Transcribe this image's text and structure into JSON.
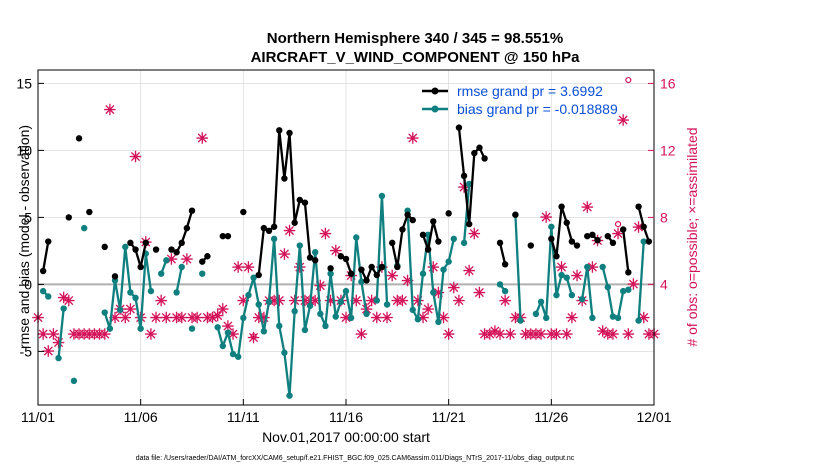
{
  "figure": {
    "title_line1": "Northern Hemisphere 340 / 345 = 98.551%",
    "title_line2": "AIRCRAFT_V_WIND_COMPONENT @ 150 hPa",
    "footer": "data file: /Users/raeder/DAI/ATM_forcXX/CAM6_setup/f.e21.FHIST_BGC.f09_025.CAM6assim.011/Diags_NTrS_2017-11/obs_diag_output.nc"
  },
  "colors": {
    "rmse": "#000000",
    "bias": "#0f7f7f",
    "obs": "#d4145a",
    "legend_text": "#0a4fd6",
    "zero_line": "#b0b0b0",
    "grid": "#dcdcdc"
  },
  "chart_data": {
    "type": "line",
    "title": "Northern Hemisphere 340 / 345 = 98.551%",
    "subtitle": "AIRCRAFT_V_WIND_COMPONENT @ 150 hPa",
    "xlabel": "Nov.01,2017 00:00:00 start",
    "ylabel": "rmse and bias (model - observation)",
    "y2label": "# of obs: o=possible; ×=assimilated",
    "xlim": [
      0,
      30
    ],
    "ylim": [
      -9,
      16
    ],
    "y2lim": [
      -3.2,
      16.8
    ],
    "x_ticks": [
      0,
      5,
      10,
      15,
      20,
      25,
      30
    ],
    "x_tick_labels": [
      "11/01",
      "11/06",
      "11/11",
      "11/16",
      "11/21",
      "11/26",
      "12/01"
    ],
    "y_ticks": [
      -5,
      0,
      5,
      10,
      15
    ],
    "y_tick_labels": [
      "-5",
      "0",
      "5",
      "10",
      "15"
    ],
    "y2_ticks": [
      4,
      8,
      12,
      16
    ],
    "y2_tick_labels": [
      "4",
      "8",
      "12",
      "16"
    ],
    "grid": true,
    "legend_position": "top-right",
    "series": [
      {
        "name": "rmse",
        "legend": "rmse grand pr = 3.6992",
        "points": [
          [
            0.25,
            1
          ],
          [
            0.5,
            3.2
          ],
          null,
          [
            1.5,
            5
          ],
          null,
          [
            2,
            10.9
          ],
          null,
          [
            2.5,
            5.4
          ],
          null,
          [
            3.25,
            2.8
          ],
          null,
          [
            3.75,
            0.6
          ],
          null,
          [
            4.5,
            3.1
          ],
          [
            4.75,
            2.6
          ],
          [
            5,
            1.3
          ],
          [
            5.25,
            3.1
          ],
          null,
          [
            5.75,
            2.6
          ],
          null,
          [
            6.5,
            2.6
          ],
          [
            6.75,
            2.4
          ],
          [
            7,
            3.1
          ],
          [
            7.25,
            4.2
          ],
          [
            7.5,
            5.5
          ],
          null,
          [
            8,
            1.7
          ],
          [
            8.25,
            2.1
          ],
          null,
          [
            9,
            3.6
          ],
          [
            9.25,
            3.6
          ],
          null,
          [
            10,
            5.4
          ],
          null,
          [
            10.75,
            0.7
          ],
          [
            11,
            4.2
          ],
          [
            11.25,
            4
          ],
          [
            11.5,
            4.3
          ],
          [
            11.75,
            11.5
          ],
          [
            12,
            7.9
          ],
          [
            12.25,
            11.3
          ],
          [
            12.5,
            4.6
          ],
          [
            12.75,
            6.3
          ],
          [
            13,
            6.1
          ],
          [
            13.25,
            2
          ],
          [
            13.5,
            1.8
          ],
          null,
          [
            14.25,
            1.2
          ],
          null,
          [
            14.75,
            2.1
          ],
          [
            15,
            1.9
          ],
          [
            15.25,
            0.8
          ],
          null,
          [
            15.75,
            1.1
          ],
          [
            16,
            0.3
          ],
          [
            16.25,
            1.3
          ],
          [
            16.5,
            0.7
          ],
          [
            16.75,
            1.3
          ],
          null,
          [
            17.25,
            3.1
          ],
          [
            17.5,
            1.3
          ],
          [
            17.75,
            4.1
          ],
          [
            18,
            5.2
          ],
          [
            18.25,
            4.8
          ],
          null,
          [
            18.75,
            3.7
          ],
          [
            19,
            2.6
          ],
          [
            19.25,
            4.7
          ],
          [
            19.5,
            3.2
          ],
          null,
          [
            20,
            5.3
          ],
          null,
          [
            20.5,
            11.7
          ],
          [
            20.75,
            8.1
          ],
          [
            21,
            4.5
          ],
          [
            21.25,
            9.8
          ],
          [
            21.5,
            10.2
          ],
          [
            21.75,
            9.4
          ],
          null,
          [
            22.5,
            3.1
          ],
          [
            22.75,
            1.5
          ],
          null,
          [
            23.25,
            5.2
          ],
          null,
          [
            24,
            2.9
          ],
          null,
          [
            25,
            3.4
          ],
          [
            25.25,
            2.1
          ],
          [
            25.5,
            5.8
          ],
          [
            25.75,
            4.6
          ],
          [
            26,
            3.2
          ],
          [
            26.25,
            2.9
          ],
          null,
          [
            26.75,
            3.6
          ],
          [
            27,
            3.7
          ],
          [
            27.25,
            3.3
          ],
          null,
          [
            27.75,
            3.6
          ],
          [
            28,
            3.1
          ],
          null,
          [
            28.5,
            4.1
          ],
          [
            28.75,
            0.9
          ],
          null,
          [
            29.25,
            5.8
          ],
          [
            29.5,
            4.3
          ],
          [
            29.75,
            3.2
          ]
        ]
      },
      {
        "name": "bias",
        "legend": "bias grand pr = -0.018889",
        "points": [
          [
            0.25,
            -0.5
          ],
          [
            0.5,
            -0.9
          ],
          null,
          [
            1,
            -5.5
          ],
          [
            1.25,
            -1.8
          ],
          null,
          [
            1.75,
            -7.2
          ],
          null,
          [
            2.25,
            4.2
          ],
          null,
          [
            3.25,
            -2.1
          ],
          [
            3.5,
            -3.3
          ],
          [
            3.75,
            0.3
          ],
          [
            4,
            -1.9
          ],
          [
            4.25,
            2.8
          ],
          [
            4.5,
            -0.6
          ],
          [
            4.75,
            -1
          ],
          [
            5,
            -3.3
          ],
          [
            5.25,
            2.3
          ],
          [
            5.5,
            -0.5
          ],
          null,
          [
            6,
            0.8
          ],
          [
            6.25,
            1.8
          ],
          null,
          [
            6.75,
            -0.6
          ],
          [
            7,
            1.3
          ],
          null,
          [
            7.5,
            -3.3
          ],
          null,
          [
            8,
            0.8
          ],
          null,
          [
            8.75,
            -3.2
          ],
          [
            9,
            -4.6
          ],
          [
            9.25,
            -3.6
          ],
          [
            9.5,
            -5.2
          ],
          [
            9.75,
            -5.4
          ],
          [
            10,
            -2.5
          ],
          [
            10.25,
            -0.8
          ],
          [
            10.5,
            0.5
          ],
          [
            10.75,
            -1.5
          ],
          [
            11,
            -3.5
          ],
          [
            11.25,
            -1.3
          ],
          [
            11.5,
            3.4
          ],
          [
            11.75,
            -3.1
          ],
          [
            12,
            -5.1
          ],
          [
            12.25,
            -8.3
          ],
          [
            12.5,
            -2
          ],
          [
            12.75,
            2.9
          ],
          [
            13,
            -3.4
          ],
          [
            13.25,
            -1.6
          ],
          [
            13.5,
            2.4
          ],
          [
            13.75,
            -2.2
          ],
          [
            14,
            -3.1
          ],
          [
            14.25,
            0.8
          ],
          [
            14.5,
            -2.4
          ],
          [
            14.75,
            -1.3
          ],
          [
            15,
            -0.5
          ],
          [
            15.25,
            -2.5
          ],
          [
            15.5,
            3.5
          ],
          [
            15.75,
            0.2
          ],
          [
            16,
            -2.2
          ],
          null,
          [
            16.5,
            -1.2
          ],
          [
            16.75,
            6.6
          ],
          [
            17,
            -1.5
          ],
          null,
          [
            17.5,
            1.4
          ],
          null,
          [
            18,
            5.5
          ],
          [
            18.25,
            -1.9
          ],
          [
            18.5,
            -2.6
          ],
          [
            18.75,
            0.8
          ],
          [
            19,
            3.7
          ],
          [
            19.25,
            -0.6
          ],
          [
            19.5,
            -2.8
          ],
          [
            19.75,
            1.1
          ],
          [
            20,
            1.7
          ],
          [
            20.25,
            3.4
          ],
          null,
          [
            20.75,
            3.1
          ],
          [
            21,
            7.5
          ],
          null,
          [
            22.5,
            0
          ],
          [
            22.75,
            -0.5
          ],
          null,
          [
            23.25,
            5.2
          ],
          [
            23.5,
            -2.7
          ],
          null,
          [
            24.25,
            -2.2
          ],
          [
            24.5,
            -1.3
          ],
          [
            24.75,
            -2.5
          ],
          [
            25,
            4.3
          ],
          [
            25.25,
            -0.8
          ],
          [
            25.5,
            0.7
          ],
          [
            25.75,
            0.5
          ],
          [
            26,
            -0.8
          ],
          null,
          [
            26.5,
            -1.1
          ],
          [
            26.75,
            1.3
          ],
          [
            27,
            -2.5
          ],
          null,
          [
            27.5,
            1.3
          ],
          [
            27.75,
            -0.2
          ],
          [
            28,
            -2.4
          ],
          [
            28.25,
            -2.5
          ],
          [
            28.5,
            -0.5
          ],
          [
            28.75,
            -0.4
          ],
          null,
          [
            29.25,
            -2.7
          ],
          [
            29.5,
            3.2
          ]
        ]
      },
      {
        "name": "observations",
        "axis": "right",
        "marker": "asterisk",
        "values": [
          [
            0,
            2
          ],
          [
            0.25,
            1
          ],
          [
            0.5,
            0
          ],
          [
            0.75,
            1
          ],
          [
            1,
            0.5
          ],
          [
            1.25,
            3.2
          ],
          [
            1.5,
            3
          ],
          [
            1.75,
            1
          ],
          [
            2,
            1
          ],
          [
            2.25,
            1
          ],
          [
            2.5,
            1
          ],
          [
            2.75,
            1
          ],
          [
            3,
            1
          ],
          [
            3.25,
            1
          ],
          [
            3.5,
            14.4
          ],
          [
            3.75,
            2
          ],
          [
            4,
            2.5
          ],
          [
            4.25,
            2
          ],
          [
            4.5,
            2.5
          ],
          [
            4.75,
            11.6
          ],
          [
            5,
            2
          ],
          [
            5.25,
            6.5
          ],
          [
            5.5,
            1
          ],
          [
            5.75,
            2
          ],
          [
            6,
            3
          ],
          [
            6.25,
            2
          ],
          [
            6.5,
            5.5
          ],
          [
            6.75,
            2
          ],
          [
            7,
            2
          ],
          [
            7.25,
            5.5
          ],
          [
            7.5,
            2
          ],
          [
            7.75,
            2
          ],
          [
            8,
            12.7
          ],
          [
            8.25,
            2
          ],
          [
            8.5,
            2
          ],
          [
            8.75,
            2.1
          ],
          [
            9,
            2.5
          ],
          [
            9.25,
            1.5
          ],
          [
            9.5,
            1
          ],
          [
            9.75,
            5
          ],
          [
            10,
            3
          ],
          [
            10.25,
            5
          ],
          [
            10.5,
            0.8
          ],
          [
            10.75,
            2
          ],
          [
            11,
            2
          ],
          [
            11.25,
            3
          ],
          [
            11.5,
            3
          ],
          [
            11.75,
            3
          ],
          [
            12,
            5.8
          ],
          [
            12.25,
            7.2
          ],
          [
            12.5,
            3
          ],
          [
            12.75,
            5
          ],
          [
            13,
            3
          ],
          [
            13.25,
            3
          ],
          [
            13.5,
            3
          ],
          [
            13.75,
            3.9
          ],
          [
            14,
            7
          ],
          [
            14.25,
            3
          ],
          [
            14.5,
            6
          ],
          [
            14.75,
            3
          ],
          [
            15,
            2
          ],
          [
            15.25,
            4.5
          ],
          [
            15.5,
            3
          ],
          [
            15.75,
            1
          ],
          [
            16,
            2.5
          ],
          [
            16.25,
            3
          ],
          [
            16.5,
            2
          ],
          [
            16.75,
            5
          ],
          [
            17,
            2
          ],
          [
            17.25,
            4.5
          ],
          [
            17.5,
            3
          ],
          [
            17.75,
            3
          ],
          [
            18,
            4.2
          ],
          [
            18.25,
            12.7
          ],
          [
            18.5,
            3
          ],
          [
            18.75,
            2
          ],
          [
            19,
            2.5
          ],
          [
            19.25,
            5
          ],
          [
            19.5,
            3.5
          ],
          [
            19.75,
            2
          ],
          [
            20,
            1
          ],
          [
            20.25,
            3.8
          ],
          [
            20.5,
            3
          ],
          [
            20.75,
            9.8
          ],
          [
            21,
            4.8
          ],
          [
            21.25,
            7
          ],
          [
            21.5,
            3.5
          ],
          [
            21.75,
            1
          ],
          [
            22,
            1
          ],
          [
            22.25,
            1.2
          ],
          [
            22.5,
            1
          ],
          [
            22.75,
            3
          ],
          [
            23,
            1
          ],
          [
            23.25,
            2
          ],
          [
            23.5,
            2
          ],
          [
            23.75,
            1
          ],
          [
            24,
            1
          ],
          [
            24.25,
            1
          ],
          [
            24.5,
            1
          ],
          [
            24.75,
            8
          ],
          [
            25,
            1
          ],
          [
            25.25,
            1
          ],
          [
            25.5,
            5
          ],
          [
            25.75,
            1
          ],
          [
            26,
            2
          ],
          [
            26.25,
            4.5
          ],
          [
            26.5,
            3
          ],
          [
            26.75,
            8.6
          ],
          [
            27,
            5
          ],
          [
            27.25,
            6.6
          ],
          [
            27.5,
            1.2
          ],
          [
            27.75,
            1
          ],
          [
            28,
            1
          ],
          [
            28.25,
            7
          ],
          [
            28.5,
            13.8
          ],
          [
            28.75,
            1
          ],
          [
            29,
            4
          ],
          [
            29.25,
            7.4
          ],
          [
            29.5,
            2
          ],
          [
            29.75,
            1
          ],
          [
            30,
            1
          ]
        ],
        "possible_extra": [
          [
            10.5,
            0.9
          ],
          [
            28.75,
            16.2
          ],
          [
            28.25,
            7.6
          ]
        ]
      }
    ]
  }
}
